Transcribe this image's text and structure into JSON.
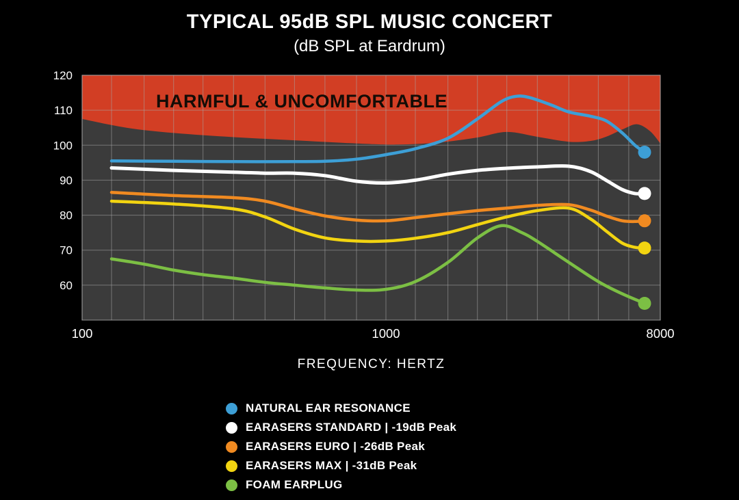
{
  "header": {
    "title": "TYPICAL 95dB SPL MUSIC CONCERT",
    "subtitle": "(dB SPL at Eardrum)"
  },
  "chart_data": {
    "type": "line",
    "title": "TYPICAL 95dB SPL MUSIC CONCERT",
    "subtitle": "(dB SPL at Eardrum)",
    "xlabel": "FREQUENCY: HERTZ",
    "ylabel": "dB SPL at Eardrum",
    "x_scale": "log",
    "x_range": [
      100,
      8000
    ],
    "y_range": [
      50,
      120
    ],
    "grid": true,
    "legend_position": "bottom",
    "x_ticks": [
      {
        "value": 100,
        "label": "100"
      },
      {
        "value": 1000,
        "label": "1000"
      },
      {
        "value": 8000,
        "label": "8000"
      }
    ],
    "y_ticks": [
      {
        "value": 120,
        "label": "120"
      },
      {
        "value": 110,
        "label": "110"
      },
      {
        "value": 100,
        "label": "100"
      },
      {
        "value": 90,
        "label": "90"
      },
      {
        "value": 80,
        "label": "80"
      },
      {
        "value": 70,
        "label": "70"
      },
      {
        "value": 60,
        "label": "60"
      }
    ],
    "x_gridlines": [
      100,
      125,
      160,
      200,
      250,
      315,
      400,
      500,
      630,
      800,
      1000,
      1250,
      1600,
      2000,
      2500,
      3150,
      4000,
      5000,
      6300,
      8000
    ],
    "y_gridlines": [
      60,
      70,
      80,
      90,
      100,
      110,
      120
    ],
    "plot_bg": "#3b3b3b",
    "grid_color": "#a6a6a6",
    "danger_zone": {
      "label": "HARMFUL & UNCOMFORTABLE",
      "color": "#d23e24",
      "boundary_db_by_hz": [
        [
          100,
          107.5
        ],
        [
          140,
          105
        ],
        [
          200,
          103.5
        ],
        [
          315,
          102.3
        ],
        [
          500,
          101.4
        ],
        [
          800,
          100.5
        ],
        [
          1100,
          100.2
        ],
        [
          1500,
          100.8
        ],
        [
          2000,
          102.2
        ],
        [
          2500,
          103.8
        ],
        [
          3150,
          102.4
        ],
        [
          4000,
          101.0
        ],
        [
          4700,
          101.2
        ],
        [
          5300,
          102.4
        ],
        [
          6000,
          104.5
        ],
        [
          6700,
          106.0
        ],
        [
          7400,
          104.0
        ],
        [
          8000,
          100.5
        ]
      ]
    },
    "series": [
      {
        "name": "natural-ear-resonance",
        "legend_label": "NATURAL EAR RESONANCE",
        "color": "#3d9fd6",
        "stroke_width": 4.5,
        "points_hz_db": [
          [
            125,
            95.5
          ],
          [
            200,
            95.4
          ],
          [
            315,
            95.3
          ],
          [
            500,
            95.3
          ],
          [
            630,
            95.4
          ],
          [
            800,
            96.0
          ],
          [
            1000,
            97.3
          ],
          [
            1250,
            99.0
          ],
          [
            1600,
            102.0
          ],
          [
            2000,
            107.5
          ],
          [
            2400,
            112.5
          ],
          [
            2700,
            114.0
          ],
          [
            3000,
            113.5
          ],
          [
            3500,
            111.5
          ],
          [
            4000,
            109.5
          ],
          [
            4700,
            108.3
          ],
          [
            5300,
            107.0
          ],
          [
            6000,
            103.5
          ],
          [
            6600,
            100.0
          ],
          [
            7100,
            98.0
          ]
        ]
      },
      {
        "name": "earasers-standard",
        "legend_label": "EARASERS STANDARD | -19dB Peak",
        "color": "#ffffff",
        "stroke_width": 5,
        "points_hz_db": [
          [
            125,
            93.5
          ],
          [
            200,
            92.8
          ],
          [
            315,
            92.3
          ],
          [
            400,
            92.0
          ],
          [
            500,
            92.0
          ],
          [
            630,
            91.3
          ],
          [
            800,
            89.7
          ],
          [
            1000,
            89.2
          ],
          [
            1250,
            90.0
          ],
          [
            1600,
            91.7
          ],
          [
            2000,
            92.8
          ],
          [
            2500,
            93.4
          ],
          [
            3150,
            93.8
          ],
          [
            4000,
            94.0
          ],
          [
            4700,
            92.5
          ],
          [
            5300,
            90.0
          ],
          [
            6000,
            87.3
          ],
          [
            6600,
            86.2
          ],
          [
            7100,
            86.2
          ]
        ]
      },
      {
        "name": "earasers-euro",
        "legend_label": "EARASERS EURO | -26dB Peak",
        "color": "#f08a21",
        "stroke_width": 4.5,
        "points_hz_db": [
          [
            125,
            86.5
          ],
          [
            200,
            85.6
          ],
          [
            315,
            85.0
          ],
          [
            400,
            84.0
          ],
          [
            500,
            81.8
          ],
          [
            630,
            79.8
          ],
          [
            800,
            78.6
          ],
          [
            1000,
            78.4
          ],
          [
            1250,
            79.3
          ],
          [
            1600,
            80.4
          ],
          [
            2000,
            81.3
          ],
          [
            2500,
            82.0
          ],
          [
            3150,
            82.8
          ],
          [
            4000,
            83.0
          ],
          [
            4700,
            81.5
          ],
          [
            5300,
            79.8
          ],
          [
            6000,
            78.4
          ],
          [
            6600,
            78.2
          ],
          [
            7100,
            78.4
          ]
        ]
      },
      {
        "name": "earasers-max",
        "legend_label": "EARASERS MAX | -31dB Peak",
        "color": "#f2d411",
        "stroke_width": 4.5,
        "points_hz_db": [
          [
            125,
            84.0
          ],
          [
            200,
            83.2
          ],
          [
            315,
            81.8
          ],
          [
            400,
            79.5
          ],
          [
            500,
            76.0
          ],
          [
            630,
            73.5
          ],
          [
            800,
            72.6
          ],
          [
            1000,
            72.6
          ],
          [
            1250,
            73.4
          ],
          [
            1600,
            75.0
          ],
          [
            2000,
            77.3
          ],
          [
            2500,
            79.5
          ],
          [
            3150,
            81.3
          ],
          [
            4000,
            82.0
          ],
          [
            4700,
            79.0
          ],
          [
            5300,
            75.5
          ],
          [
            6000,
            72.0
          ],
          [
            6600,
            70.8
          ],
          [
            7100,
            70.6
          ]
        ]
      },
      {
        "name": "foam-earplug",
        "legend_label": "FOAM EARPLUG",
        "color": "#7cbf44",
        "stroke_width": 4.5,
        "points_hz_db": [
          [
            125,
            67.5
          ],
          [
            160,
            66.0
          ],
          [
            200,
            64.3
          ],
          [
            250,
            63.0
          ],
          [
            315,
            62.0
          ],
          [
            400,
            60.8
          ],
          [
            500,
            60.0
          ],
          [
            630,
            59.2
          ],
          [
            800,
            58.6
          ],
          [
            1000,
            58.8
          ],
          [
            1250,
            61.0
          ],
          [
            1600,
            66.5
          ],
          [
            2000,
            73.5
          ],
          [
            2400,
            77.0
          ],
          [
            2800,
            75.0
          ],
          [
            3150,
            72.5
          ],
          [
            4000,
            66.5
          ],
          [
            5000,
            61.0
          ],
          [
            6000,
            57.5
          ],
          [
            7100,
            54.8
          ]
        ]
      }
    ]
  }
}
